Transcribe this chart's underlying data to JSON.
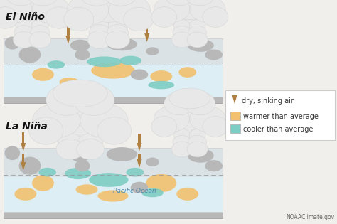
{
  "panel1_label": "El Niño",
  "panel2_label": "La Niña",
  "legend_arrow_label": "dry, sinking air",
  "legend_warm_label": "warmer than average",
  "legend_cool_label": "cooler than average",
  "pacific_ocean_label": "Pacific Ocean",
  "credit": "NOAAClimate.gov",
  "bg_color": "#f0efeb",
  "warm_color": "#f2c06e",
  "cool_color": "#7ecdc4",
  "land_color": "#b8b8b8",
  "land_color2": "#c8c8c8",
  "ocean_color": "#ddeef5",
  "arrow_color": "#b08040",
  "cloud_color": "#e8e8e8",
  "cloud_edge": "#d0d0d0",
  "dashed_line_color": "#999999",
  "panel_edge": "#cccccc",
  "bottom_edge": "#aaaaaa",
  "label_color": "#111111",
  "pacific_color": "#4a8ab0",
  "legend_bg": "#ffffff",
  "legend_border": "#cccccc"
}
